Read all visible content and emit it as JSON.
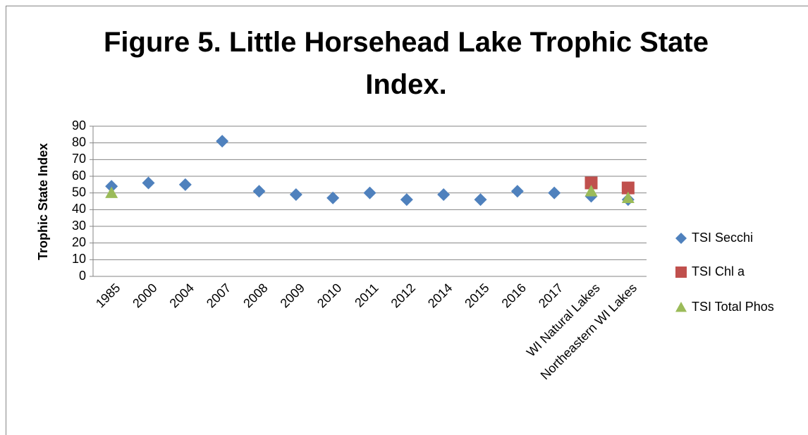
{
  "chart_data": {
    "type": "scatter",
    "title": "Figure 5. Little Horsehead Lake Trophic State Index.",
    "y_label": "Trophic State Index",
    "categories": [
      "1985",
      "2000",
      "2004",
      "2007",
      "2008",
      "2009",
      "2010",
      "2011",
      "2012",
      "2014",
      "2015",
      "2016",
      "2017",
      "WI Natural Lakes",
      "Northeastern WI Lakes"
    ],
    "series": [
      {
        "name": "TSI Secchi",
        "color": "#4f81bd",
        "marker": "diamond",
        "values": [
          54,
          56,
          55,
          81,
          51,
          49,
          47,
          50,
          46,
          49,
          46,
          51,
          50,
          48,
          46
        ]
      },
      {
        "name": "TSI Chl a",
        "color": "#c0504d",
        "marker": "square",
        "values": [
          null,
          null,
          null,
          null,
          null,
          null,
          null,
          null,
          null,
          null,
          null,
          null,
          null,
          56,
          53
        ]
      },
      {
        "name": "TSI Total Phos",
        "color": "#9bbb59",
        "marker": "triangle",
        "values": [
          50,
          null,
          null,
          null,
          null,
          null,
          null,
          null,
          null,
          null,
          null,
          null,
          null,
          51,
          47
        ]
      }
    ],
    "ylim": [
      0,
      90
    ],
    "yticks": [
      0,
      10,
      20,
      30,
      40,
      50,
      60,
      70,
      80,
      90
    ],
    "grid": true,
    "legend": "right"
  }
}
